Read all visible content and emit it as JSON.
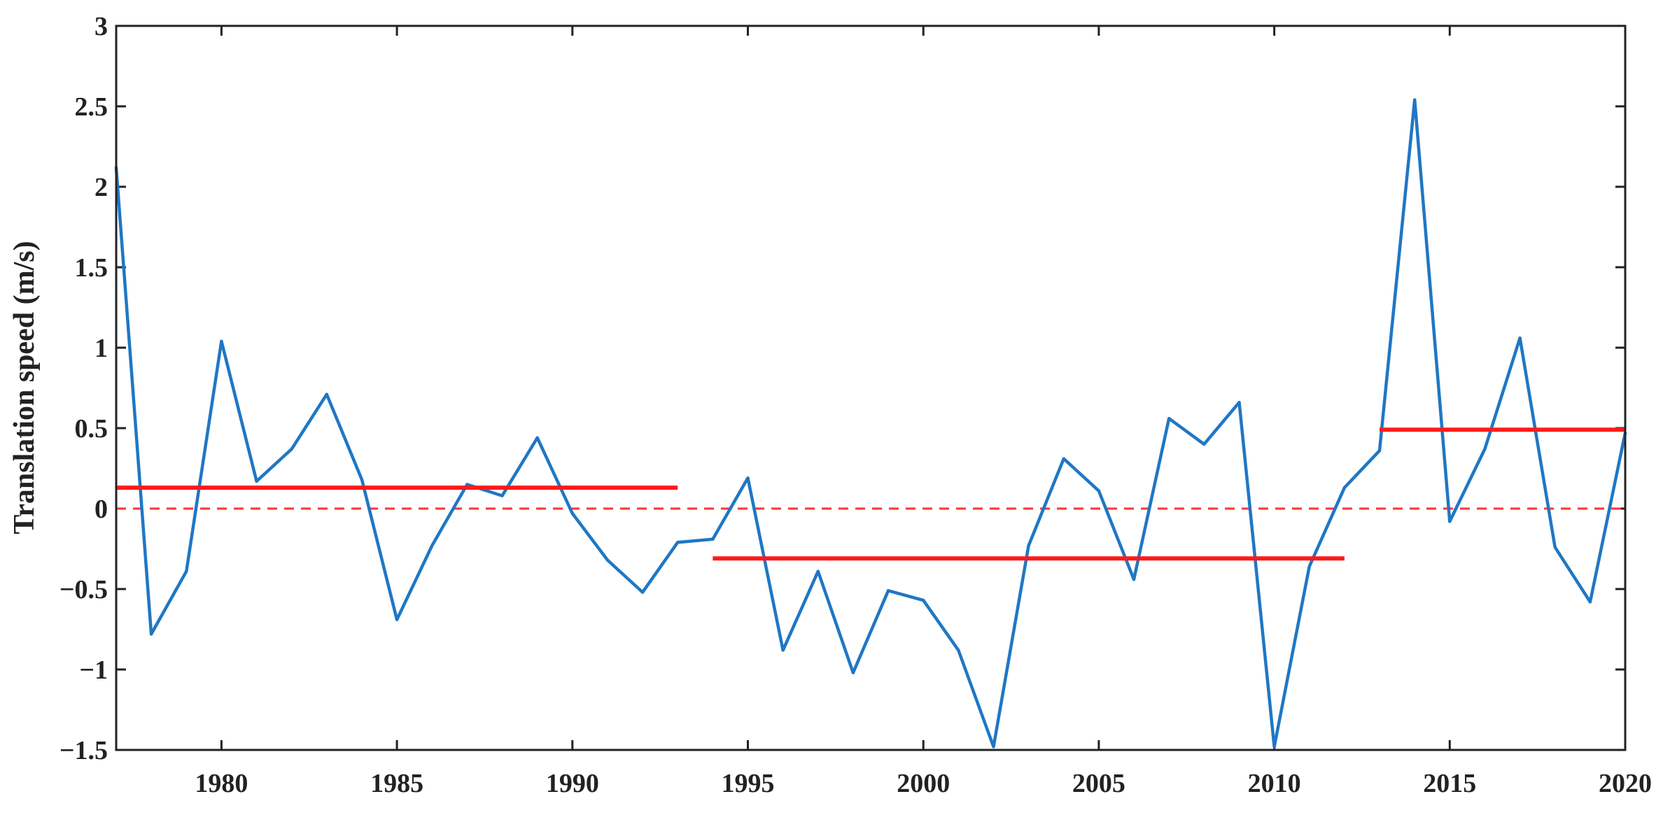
{
  "chart_data": {
    "type": "line",
    "title": "",
    "xlabel": "",
    "ylabel": "Translation speed (m/s)",
    "xlim": [
      1977,
      2020
    ],
    "ylim": [
      -1.5,
      3
    ],
    "xticks": [
      1980,
      1985,
      1990,
      1995,
      2000,
      2005,
      2010,
      2015,
      2020
    ],
    "yticks": [
      -1.5,
      -1,
      -0.5,
      0,
      0.5,
      1,
      1.5,
      2,
      2.5,
      3
    ],
    "ytick_labels": [
      "−1.5",
      "−1",
      "−0.5",
      "0",
      "0.5",
      "1",
      "1.5",
      "2",
      "2.5",
      "3"
    ],
    "grid": false,
    "series": [
      {
        "color": "#1f77c4",
        "x": [
          1977,
          1978,
          1979,
          1980,
          1981,
          1982,
          1983,
          1984,
          1985,
          1986,
          1987,
          1988,
          1989,
          1990,
          1991,
          1992,
          1993,
          1994,
          1995,
          1996,
          1997,
          1998,
          1999,
          2000,
          2001,
          2002,
          2003,
          2004,
          2005,
          2006,
          2007,
          2008,
          2009,
          2010,
          2011,
          2012,
          2013,
          2014,
          2015,
          2016,
          2017,
          2018,
          2019,
          2020
        ],
        "y": [
          2.12,
          -0.78,
          -0.39,
          1.04,
          0.17,
          0.37,
          0.71,
          0.18,
          -0.69,
          -0.23,
          0.15,
          0.08,
          0.44,
          -0.03,
          -0.32,
          -0.52,
          -0.21,
          -0.19,
          0.19,
          -0.88,
          -0.39,
          -1.02,
          -0.51,
          -0.57,
          -0.88,
          -1.48,
          -0.23,
          0.31,
          0.11,
          -0.44,
          0.56,
          0.4,
          0.66,
          -1.48,
          -0.36,
          0.13,
          0.36,
          2.54,
          -0.08,
          0.37,
          1.06,
          -0.24,
          -0.58,
          0.47
        ]
      }
    ],
    "mean_segments": [
      {
        "x_start": 1977,
        "x_end": 1993,
        "y": 0.13
      },
      {
        "x_start": 1994,
        "x_end": 2012,
        "y": -0.31
      },
      {
        "x_start": 2013,
        "x_end": 2020,
        "y": 0.49
      }
    ],
    "reference_line": {
      "y": 0,
      "style": "dashed"
    },
    "colors": {
      "series": "#1f77c4",
      "mean": "#ff1a1a",
      "reference": "#ff3333",
      "axis": "#222222"
    }
  }
}
